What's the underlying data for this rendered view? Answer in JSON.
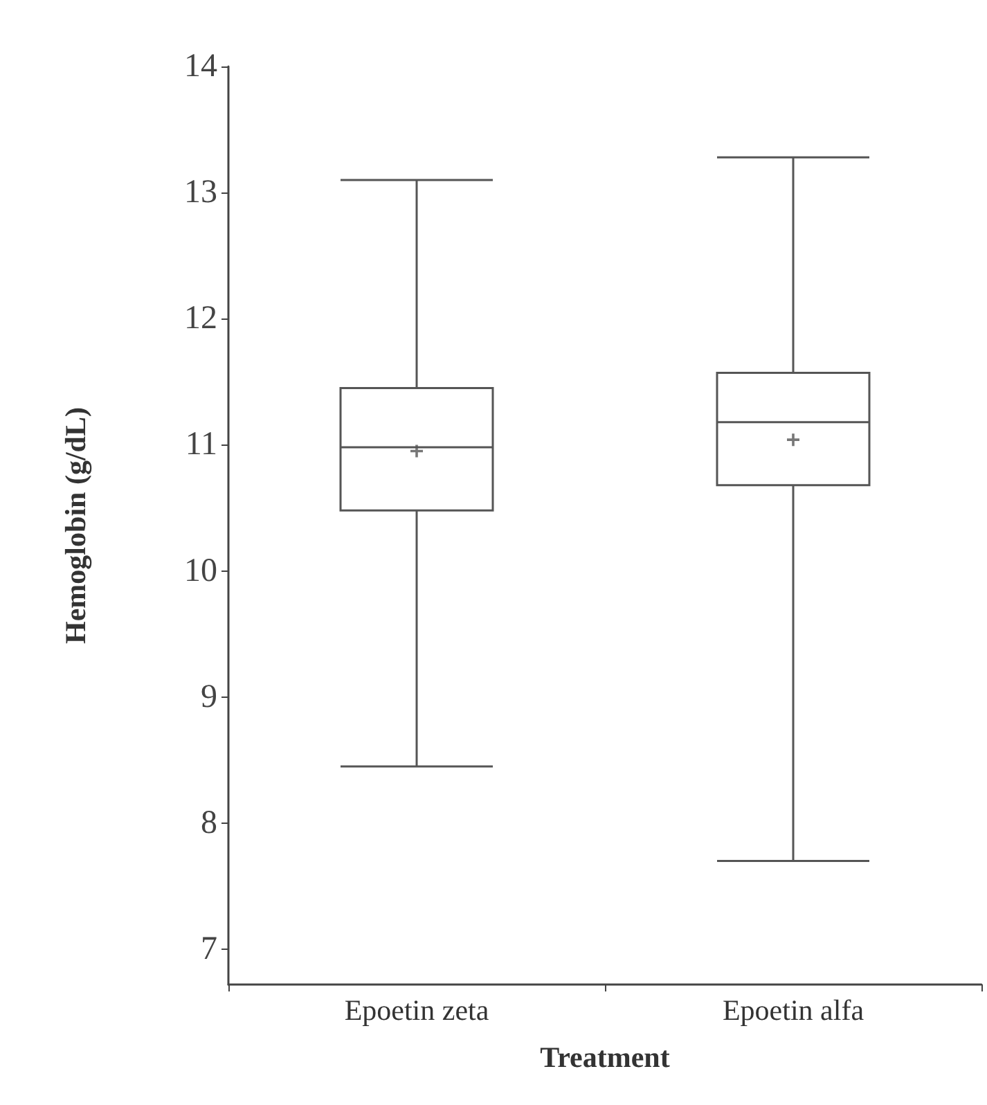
{
  "chart_data": {
    "type": "box",
    "xlabel": "Treatment",
    "ylabel": "Hemoglobin (g/dL)",
    "categories": [
      "Epoetin zeta",
      "Epoetin alfa"
    ],
    "boxes": [
      {
        "low": 8.45,
        "q1": 10.48,
        "median": 10.98,
        "q3": 11.45,
        "high": 13.1,
        "mean": 10.95
      },
      {
        "low": 7.7,
        "q1": 10.68,
        "median": 11.18,
        "q3": 11.57,
        "high": 13.28,
        "mean": 11.04
      }
    ],
    "color": "#555555",
    "marker": "cross",
    "ylim": [
      6.72,
      14
    ],
    "yticks": [
      7,
      8,
      9,
      10,
      11,
      12,
      13,
      14
    ],
    "grid": false
  }
}
